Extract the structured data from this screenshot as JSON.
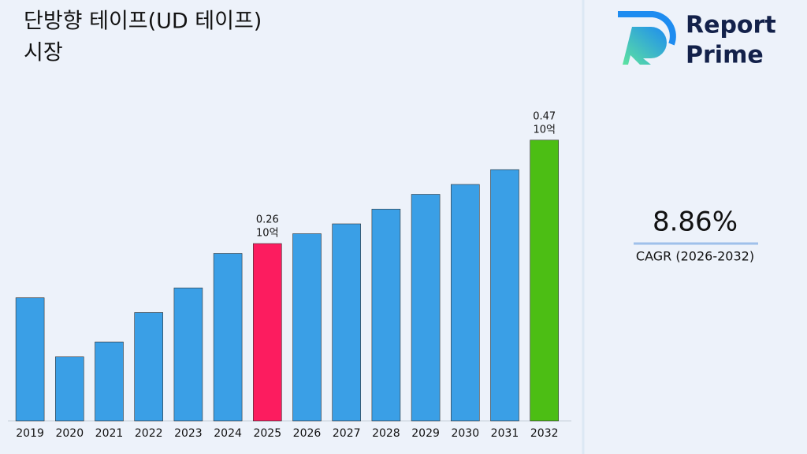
{
  "chart_data": {
    "type": "bar",
    "title": [
      "단방향 테이프(UD 테이프)",
      "시장"
    ],
    "categories": [
      "2019",
      "2020",
      "2021",
      "2022",
      "2023",
      "2024",
      "2025",
      "2026",
      "2027",
      "2028",
      "2029",
      "2030",
      "2031",
      "2032"
    ],
    "values": [
      0.15,
      0.03,
      0.06,
      0.12,
      0.17,
      0.24,
      0.26,
      0.28,
      0.3,
      0.33,
      0.36,
      0.38,
      0.41,
      0.47
    ],
    "colors": [
      "#3a9fe6",
      "#3a9fe6",
      "#3a9fe6",
      "#3a9fe6",
      "#3a9fe6",
      "#3a9fe6",
      "#fc1c5f",
      "#3a9fe6",
      "#3a9fe6",
      "#3a9fe6",
      "#3a9fe6",
      "#3a9fe6",
      "#3a9fe6",
      "#4cbe14"
    ],
    "labeled": [
      6,
      13
    ],
    "value_unit": "10억",
    "ylim": [
      -0.1,
      0.5
    ]
  },
  "cagr": {
    "value": "8.86%",
    "label": "CAGR (2026-2032)"
  },
  "brand": [
    "Report",
    "Prime"
  ]
}
